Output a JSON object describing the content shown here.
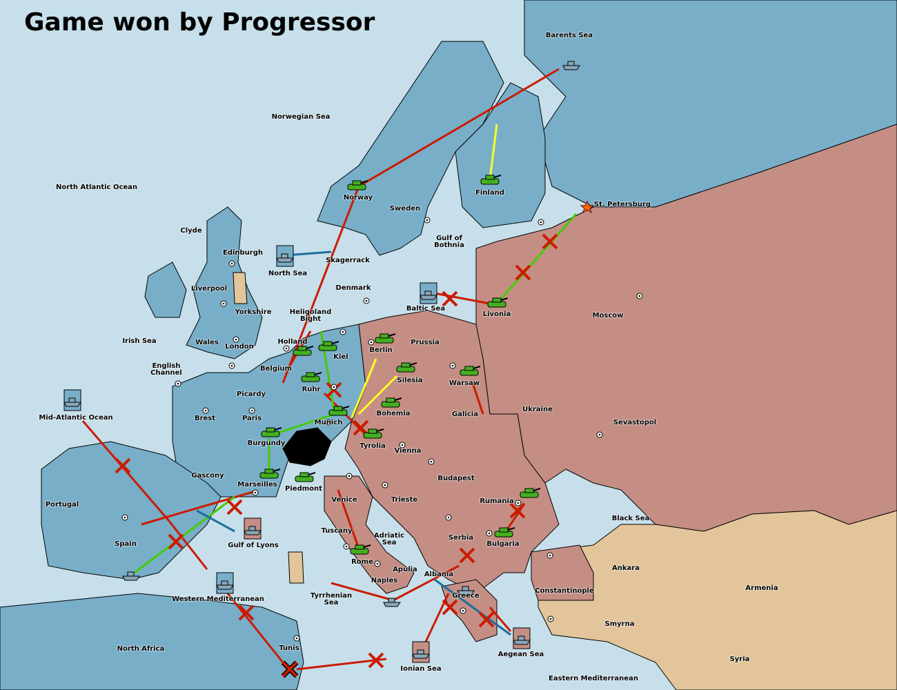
{
  "title": "Game won by Progressor",
  "colors": {
    "sea": "#c6dfea",
    "player_blue": "#78aec8",
    "player_pink": "#c48e84",
    "player_tan": "#e2c59b",
    "neutral_land": "#c6dfea",
    "move_order": "#cc1a00",
    "support_order": "#44cc00",
    "convoy_order": "#ffff22",
    "fleet_link": "#1a6fa0"
  },
  "provinces": [
    "Barents Sea",
    "Norwegian Sea",
    "North Atlantic Ocean",
    "Finland",
    "St. Petersburg",
    "Norway",
    "Sweden",
    "Clyde",
    "Gulf of\nBothnia",
    "Edinburgh",
    "Skagerrack",
    "North Sea",
    "Liverpool",
    "Denmark",
    "Baltic Sea",
    "Livonia",
    "Moscow",
    "Yorkshire",
    "Heligoland\nBight",
    "Irish Sea",
    "Wales",
    "Holland",
    "Prussia",
    "London",
    "Berlin",
    "Kiel",
    "English\nChannel",
    "Belgium",
    "Silesia",
    "Warsaw",
    "Ruhr",
    "Picardy",
    "Ukraine",
    "Brest",
    "Paris",
    "Mid-Atlantic Ocean",
    "Munich",
    "Bohemia",
    "Galicia",
    "Sevastopol",
    "Burgundy",
    "Tyrolia",
    "Vienna",
    "Gascony",
    "Budapest",
    "Marseilles",
    "Piedmont",
    "Portugal",
    "Venice",
    "Trieste",
    "Rumania",
    "Black Sea",
    "Tuscany",
    "Serbia",
    "Adriatic\nSea",
    "Spain",
    "Gulf of Lyons",
    "Bulgaria",
    "Rome",
    "Ankara",
    "Apulia",
    "Albania",
    "Naples",
    "Constantinople",
    "Armenia",
    "Greece",
    "Tyrrhenian\nSea",
    "Western Mediterranean",
    "Smyrna",
    "North Africa",
    "Tunis",
    "Aegean Sea",
    "Syria",
    "Ionian Sea",
    "Eastern Mediterranean"
  ],
  "units": [
    {
      "type": "fleet",
      "icon": "ship-icon",
      "owner": "blue"
    },
    {
      "type": "army",
      "icon": "tank-icon",
      "owner": "green"
    }
  ]
}
